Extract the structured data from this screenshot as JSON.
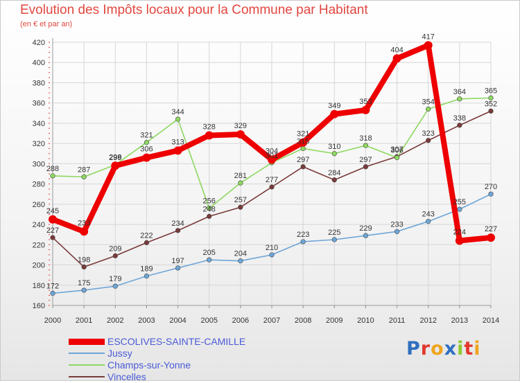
{
  "title": "Evolution des Impôts locaux pour la Commune par Habitant",
  "subtitle": "(en € et par an)",
  "logo_text": "Proxiti",
  "chart_data": {
    "type": "line",
    "title": "Evolution des Impôts locaux pour la Commune par Habitant",
    "subtitle": "(en € et par an)",
    "x": [
      "2000",
      "2001",
      "2002",
      "2003",
      "2004",
      "2005",
      "2006",
      "2007",
      "2008",
      "2009",
      "2010",
      "2011",
      "2012",
      "2013",
      "2014"
    ],
    "y_ticks": [
      "160",
      "180",
      "200",
      "220",
      "240",
      "260",
      "280",
      "300",
      "320",
      "340",
      "360",
      "380",
      "400",
      "420"
    ],
    "ylim": [
      160,
      420
    ],
    "grid": true,
    "legend_position": "bottom-left",
    "series": [
      {
        "name": "ESCOLIVES-SAINTE-CAMILLE",
        "values": [
          245,
          233,
          298,
          306,
          313,
          328,
          329,
          304,
          321,
          349,
          353,
          404,
          417,
          224,
          227
        ],
        "labels": [
          "245",
          "233",
          "298",
          "306",
          "313",
          "328",
          "329",
          "304",
          "321",
          "349",
          "353",
          "404",
          "417",
          "224",
          "227"
        ],
        "color": "#ee0000"
      },
      {
        "name": "Jussy",
        "values": [
          172,
          175,
          179,
          189,
          197,
          205,
          204,
          210,
          223,
          225,
          229,
          233,
          243,
          255,
          270
        ],
        "labels": [
          "172",
          "175",
          "179",
          "189",
          "197",
          "205",
          "204",
          "210",
          "223",
          "225",
          "229",
          "233",
          "243",
          "255",
          "270"
        ],
        "color": "#6ea6d8"
      },
      {
        "name": "Champs-sur-Yonne",
        "values": [
          288,
          287,
          299,
          321,
          344,
          256,
          281,
          301,
          315,
          310,
          318,
          306,
          354,
          364,
          365
        ],
        "labels": [
          "288",
          "287",
          "299",
          "321",
          "344",
          "256",
          "281",
          "301",
          "315",
          "310",
          "318",
          "306",
          "354",
          "364",
          "365"
        ],
        "color": "#8ed860"
      },
      {
        "name": "Vincelles",
        "values": [
          227,
          198,
          209,
          222,
          234,
          248,
          257,
          277,
          297,
          284,
          297,
          307,
          323,
          338,
          352
        ],
        "labels": [
          "227",
          "198",
          "209",
          "222",
          "234",
          "248",
          "257",
          "277",
          "297",
          "284",
          "297",
          "307",
          "323",
          "338",
          "352"
        ],
        "color": "#7a3a3a"
      }
    ]
  }
}
